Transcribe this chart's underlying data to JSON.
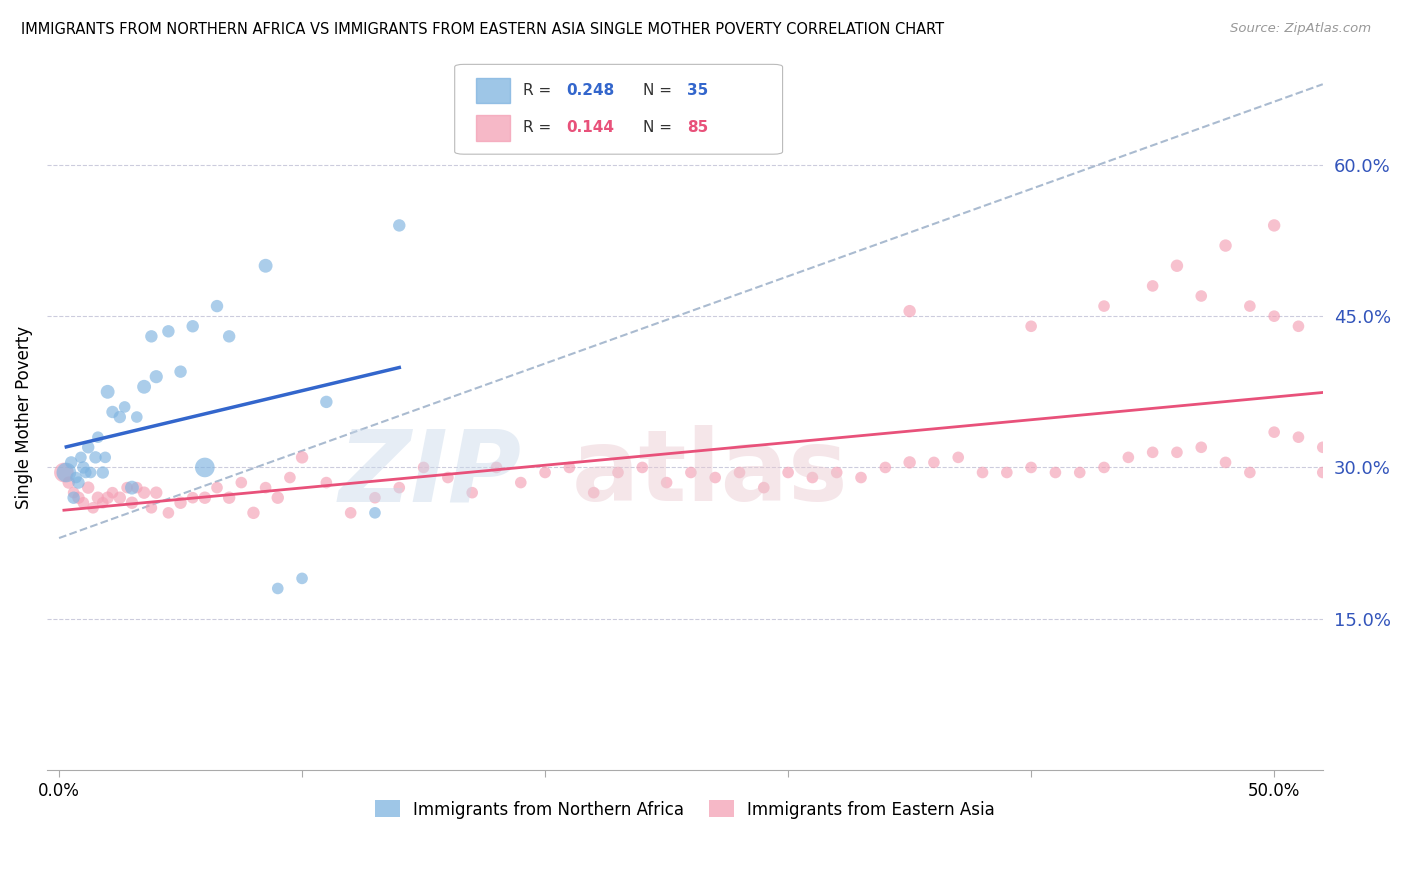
{
  "title": "IMMIGRANTS FROM NORTHERN AFRICA VS IMMIGRANTS FROM EASTERN ASIA SINGLE MOTHER POVERTY CORRELATION CHART",
  "source": "Source: ZipAtlas.com",
  "ylabel": "Single Mother Poverty",
  "ytick_labels": [
    "15.0%",
    "30.0%",
    "45.0%",
    "60.0%"
  ],
  "ytick_values": [
    0.15,
    0.3,
    0.45,
    0.6
  ],
  "xlim": [
    0.0,
    0.52
  ],
  "ylim": [
    0.0,
    0.7
  ],
  "legend_r1_label": "R = ",
  "legend_r1_val": "0.248",
  "legend_n1_label": "N = ",
  "legend_n1_val": "35",
  "legend_r2_label": "R = ",
  "legend_r2_val": "0.144",
  "legend_n2_label": "N = ",
  "legend_n2_val": "85",
  "color_blue": "#7EB3E0",
  "color_pink": "#F4A0B5",
  "color_blue_line": "#3366CC",
  "color_pink_line": "#E8517A",
  "color_dashed": "#AABBD0",
  "watermark_zip": "ZIP",
  "watermark_atlas": "atlas",
  "legend_label_blue": "Immigrants from Northern Africa",
  "legend_label_pink": "Immigrants from Eastern Asia",
  "blue_x": [
    0.003,
    0.005,
    0.006,
    0.007,
    0.008,
    0.009,
    0.01,
    0.011,
    0.012,
    0.013,
    0.015,
    0.016,
    0.018,
    0.019,
    0.02,
    0.022,
    0.025,
    0.027,
    0.03,
    0.032,
    0.035,
    0.038,
    0.04,
    0.045,
    0.05,
    0.055,
    0.06,
    0.065,
    0.07,
    0.085,
    0.09,
    0.1,
    0.11,
    0.13,
    0.14
  ],
  "blue_y": [
    0.295,
    0.305,
    0.27,
    0.29,
    0.285,
    0.31,
    0.3,
    0.295,
    0.32,
    0.295,
    0.31,
    0.33,
    0.295,
    0.31,
    0.375,
    0.355,
    0.35,
    0.36,
    0.28,
    0.35,
    0.38,
    0.43,
    0.39,
    0.435,
    0.395,
    0.44,
    0.3,
    0.46,
    0.43,
    0.5,
    0.18,
    0.19,
    0.365,
    0.255,
    0.54
  ],
  "blue_sizes": [
    200,
    80,
    80,
    70,
    80,
    70,
    80,
    70,
    80,
    70,
    80,
    70,
    80,
    70,
    100,
    80,
    80,
    70,
    100,
    70,
    100,
    80,
    90,
    80,
    80,
    80,
    200,
    80,
    80,
    100,
    70,
    70,
    80,
    70,
    80
  ],
  "pink_x": [
    0.002,
    0.004,
    0.006,
    0.008,
    0.01,
    0.012,
    0.014,
    0.016,
    0.018,
    0.02,
    0.022,
    0.025,
    0.028,
    0.03,
    0.032,
    0.035,
    0.038,
    0.04,
    0.045,
    0.05,
    0.055,
    0.06,
    0.065,
    0.07,
    0.075,
    0.08,
    0.085,
    0.09,
    0.095,
    0.1,
    0.11,
    0.12,
    0.13,
    0.14,
    0.15,
    0.16,
    0.17,
    0.18,
    0.19,
    0.2,
    0.21,
    0.22,
    0.23,
    0.24,
    0.25,
    0.26,
    0.27,
    0.28,
    0.29,
    0.3,
    0.31,
    0.32,
    0.33,
    0.34,
    0.35,
    0.36,
    0.37,
    0.38,
    0.39,
    0.4,
    0.41,
    0.42,
    0.43,
    0.44,
    0.45,
    0.46,
    0.47,
    0.48,
    0.49,
    0.5,
    0.51,
    0.52,
    0.35,
    0.4,
    0.43,
    0.45,
    0.47,
    0.49,
    0.5,
    0.51,
    0.52,
    0.53,
    0.5,
    0.48,
    0.46
  ],
  "pink_y": [
    0.295,
    0.285,
    0.275,
    0.27,
    0.265,
    0.28,
    0.26,
    0.27,
    0.265,
    0.27,
    0.275,
    0.27,
    0.28,
    0.265,
    0.28,
    0.275,
    0.26,
    0.275,
    0.255,
    0.265,
    0.27,
    0.27,
    0.28,
    0.27,
    0.285,
    0.255,
    0.28,
    0.27,
    0.29,
    0.31,
    0.285,
    0.255,
    0.27,
    0.28,
    0.3,
    0.29,
    0.275,
    0.3,
    0.285,
    0.295,
    0.3,
    0.275,
    0.295,
    0.3,
    0.285,
    0.295,
    0.29,
    0.295,
    0.28,
    0.295,
    0.29,
    0.295,
    0.29,
    0.3,
    0.305,
    0.305,
    0.31,
    0.295,
    0.295,
    0.3,
    0.295,
    0.295,
    0.3,
    0.31,
    0.315,
    0.315,
    0.32,
    0.305,
    0.295,
    0.335,
    0.33,
    0.295,
    0.455,
    0.44,
    0.46,
    0.48,
    0.47,
    0.46,
    0.45,
    0.44,
    0.32,
    0.3,
    0.54,
    0.52,
    0.5
  ],
  "pink_sizes": [
    200,
    80,
    70,
    80,
    70,
    80,
    70,
    80,
    70,
    80,
    70,
    80,
    70,
    80,
    70,
    80,
    70,
    80,
    70,
    80,
    70,
    80,
    70,
    80,
    70,
    80,
    70,
    80,
    70,
    80,
    70,
    70,
    70,
    70,
    70,
    70,
    70,
    70,
    70,
    70,
    70,
    70,
    70,
    70,
    70,
    70,
    70,
    70,
    70,
    70,
    70,
    70,
    70,
    70,
    80,
    70,
    70,
    70,
    70,
    70,
    70,
    70,
    70,
    70,
    70,
    70,
    70,
    70,
    70,
    70,
    70,
    70,
    80,
    70,
    70,
    70,
    70,
    70,
    70,
    70,
    70,
    70,
    80,
    80,
    80
  ]
}
